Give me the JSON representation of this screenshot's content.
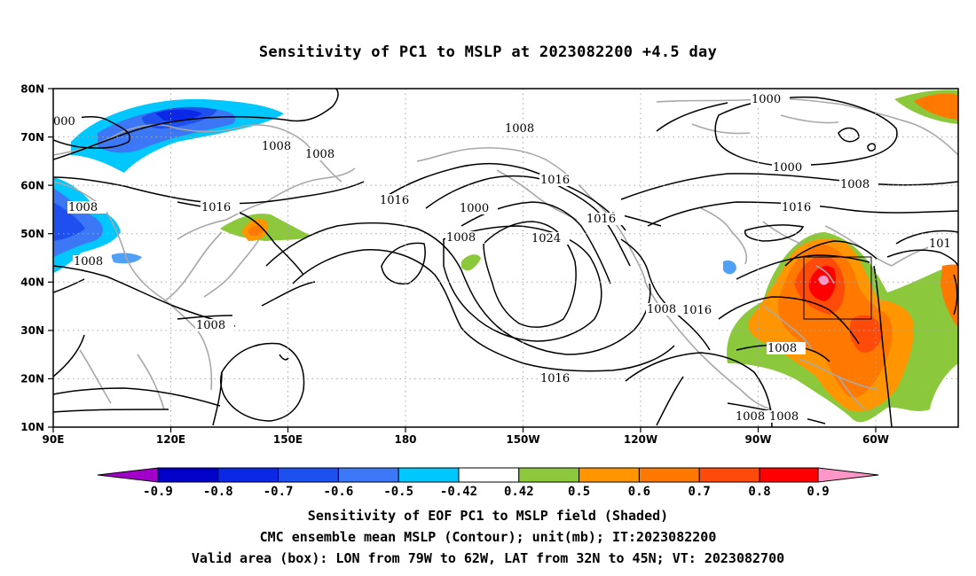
{
  "title": "Sensitivity of PC1 to MSLP at 2023082200 +4.5 day",
  "axes": {
    "lat_labels": [
      "80N",
      "70N",
      "60N",
      "50N",
      "40N",
      "30N",
      "20N",
      "10N"
    ],
    "lon_labels": [
      "90E",
      "120E",
      "150E",
      "180",
      "150W",
      "120W",
      "90W",
      "60W"
    ]
  },
  "contours": {
    "unit": "mb",
    "labels": [
      "000",
      "1008",
      "1008",
      "1016",
      "1008",
      "1008",
      "1016",
      "1008",
      "1016",
      "1000",
      "1008",
      "1024",
      "1016",
      "1016",
      "1000",
      "1000",
      "1008",
      "1016",
      "101",
      "1008",
      "1008",
      "1008",
      "1008"
    ]
  },
  "colorbar": {
    "labels": [
      "-0.9",
      "-0.8",
      "-0.7",
      "-0.6",
      "-0.5",
      "-0.42",
      "0.42",
      "0.5",
      "0.6",
      "0.7",
      "0.8",
      "0.9"
    ],
    "colors": [
      "#a000c8",
      "#0000c8",
      "#0a28e6",
      "#1e50f0",
      "#3c78f5",
      "#50a0f5",
      "#00c8ff",
      "#ffffff",
      "#8cc83c",
      "#ff9600",
      "#ff7800",
      "#ff4b0a",
      "#ff0000",
      "#ff96c8"
    ]
  },
  "valid_area": {
    "lon_from": "79W",
    "lon_to": "62W",
    "lat_from": "32N",
    "lat_to": "45N"
  },
  "footer": {
    "line1": "Sensitivity of EOF PC1 to MSLP field (Shaded)",
    "line2": "CMC ensemble mean MSLP (Contour); unit(mb); IT:2023082200",
    "line3": "Valid area (box): LON from 79W to 62W, LAT from 32N to 45N; VT: 2023082700"
  }
}
